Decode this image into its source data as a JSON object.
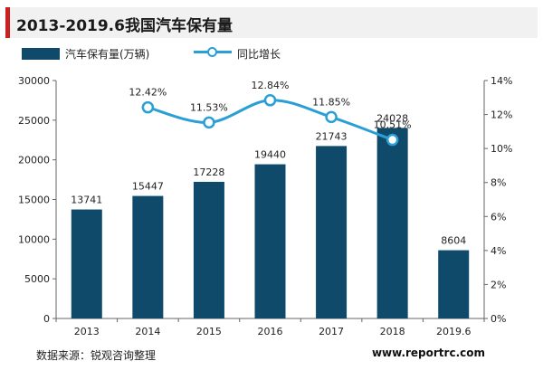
{
  "title": "2013-2019.6我国汽车保有量",
  "legend": {
    "bar_label": "汽车保有量(万辆)",
    "line_label": "同比增长"
  },
  "colors": {
    "bar": "#0f4a6b",
    "line": "#2a9fd6",
    "title_accent": "#cc1f1f",
    "title_bg": "#f1f1f1"
  },
  "footer": {
    "source": "数据来源：锐观咨询整理",
    "website": "www.reportrc.com"
  },
  "chart_data": {
    "type": "bar",
    "categories": [
      "2013",
      "2014",
      "2015",
      "2016",
      "2017",
      "2018",
      "2019.6"
    ],
    "series": [
      {
        "name": "汽车保有量(万辆)",
        "type": "bar",
        "axis": "left",
        "values": [
          13741,
          15447,
          17228,
          19440,
          21743,
          24028,
          8604
        ],
        "labels": [
          "13741",
          "15447",
          "17228",
          "19440",
          "21743",
          "24028",
          "8604"
        ]
      },
      {
        "name": "同比增长",
        "type": "line",
        "axis": "right",
        "values": [
          null,
          12.42,
          11.53,
          12.84,
          11.85,
          10.51,
          null
        ],
        "labels": [
          "",
          "12.42%",
          "11.53%",
          "12.84%",
          "11.85%",
          "10.51%",
          ""
        ]
      }
    ],
    "y_left": {
      "min": 0,
      "max": 30000,
      "ticks": [
        0,
        5000,
        10000,
        15000,
        20000,
        25000,
        30000
      ],
      "tick_labels": [
        "0",
        "5000",
        "10000",
        "15000",
        "20000",
        "25000",
        "30000"
      ]
    },
    "y_right": {
      "min": 0,
      "max": 14,
      "ticks": [
        0,
        2,
        4,
        6,
        8,
        10,
        12,
        14
      ],
      "tick_labels": [
        "0%",
        "2%",
        "4%",
        "6%",
        "8%",
        "10%",
        "12%",
        "14%"
      ]
    },
    "grid": false,
    "legend_position": "top-left"
  }
}
